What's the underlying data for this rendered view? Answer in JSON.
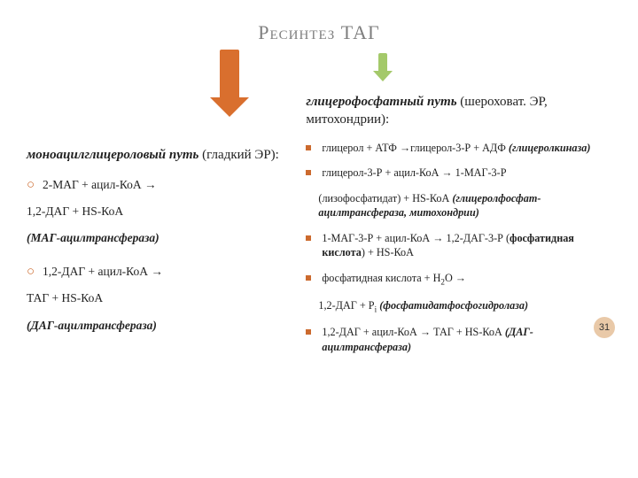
{
  "title": "Ресинтез ТАГ",
  "page_number": "31",
  "arrow_big": {
    "color": "#d96f2e",
    "stem_w": 22,
    "stem_h": 54,
    "head_w": 44,
    "head_h": 22
  },
  "arrow_small": {
    "color": "#a4c96a",
    "stem_w": 10,
    "stem_h": 20,
    "head_w": 22,
    "head_h": 12
  },
  "left": {
    "head_bold": "моноацилглицероловый путь",
    "head_rest": " (гладкий ЭР):",
    "s1_bullet": "2-МАГ + ацил-КоА →",
    "s1_line2": "1,2-ДАГ + НS-КоА",
    "s1_enz": "(МАГ-ацилтрансфераза)",
    "s2_bullet": "1,2-ДАГ + ацил-КоА →",
    "s2_line2": "ТАГ + НS-КоА",
    "s2_enz": "(ДАГ-ацилтрансфераза)"
  },
  "right": {
    "head_bold": "глицерофосфатный путь",
    "head_rest": " (шероховат. ЭР,  митохондрии):",
    "r1_a": "глицерол + АТФ →глицерол-3-Р + АДФ ",
    "r1_enz": "(глицеролкиназа)",
    "r2_a": "глицерол-3-Р + ацил-КоА → 1-МАГ-3-Р",
    "r2_cont": "(лизофосфатидат) + НS-КоА ",
    "r2_enz": "(глицеролфосфат-ацилтрансфераза, митохондрии)",
    "r3_a": "1-МАГ-3-Р + ацил-КоА → 1,2-ДАГ-3-Р (",
    "r3_bold": "фосфатидная кислота",
    "r3_b": ") + НS-КоА",
    "r4_a": "фосфатидная кислота + Н",
    "r4_b": "О →",
    "r4_cont_a": " 1,2-ДАГ + Р",
    "r4_cont_b": " ",
    "r4_enz": "(фосфатидатфосфогидролаза)",
    "r5_a": "1,2-ДАГ + ацил-КоА → ТАГ + НS-КоА ",
    "r5_enz": "(ДАГ-ацилтрансфераза)"
  }
}
